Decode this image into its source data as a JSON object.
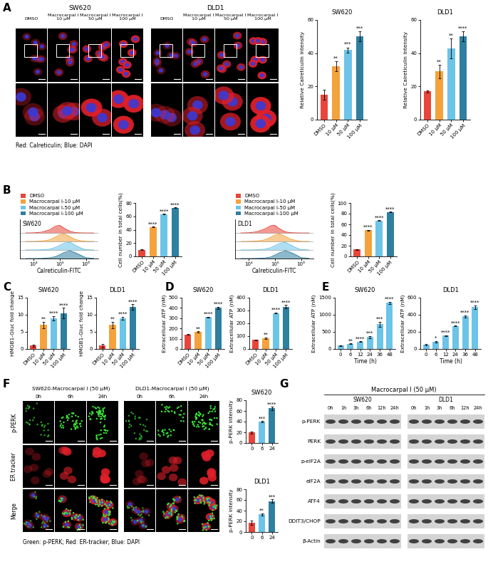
{
  "panel_labels": [
    "A",
    "B",
    "C",
    "D",
    "E",
    "F",
    "G"
  ],
  "chart_data": [
    {
      "type": "bar",
      "title": "SW620",
      "y_label": "Relative Calreticulin intensity",
      "categories": [
        "DMSO",
        "10 μM",
        "50 μM",
        "100 μM"
      ],
      "values": [
        15,
        32,
        42,
        50
      ],
      "errors": [
        3,
        3,
        1.5,
        3
      ],
      "colors": [
        "#e8463b",
        "#f4a23c",
        "#6cc4e8",
        "#2e7fa0"
      ],
      "significance": [
        null,
        "**",
        "***",
        "***"
      ],
      "ylim": [
        0,
        60
      ],
      "yticks": [
        0,
        20,
        40,
        60
      ]
    },
    {
      "type": "bar",
      "title": "DLD1",
      "y_label": "Relative Calreticulin intensity",
      "categories": [
        "DMSO",
        "10 μM",
        "50 μM",
        "100 μM"
      ],
      "values": [
        17,
        29,
        43,
        50
      ],
      "errors": [
        0.5,
        4,
        6,
        3
      ],
      "colors": [
        "#e8463b",
        "#f4a23c",
        "#6cc4e8",
        "#2e7fa0"
      ],
      "significance": [
        null,
        "**",
        "**",
        "****"
      ],
      "ylim": [
        0,
        60
      ],
      "yticks": [
        0,
        20,
        40,
        60
      ]
    },
    {
      "type": "density",
      "title": "SW620",
      "x_label": "Calreticulin-FITC",
      "log": "x",
      "legend": "upper left",
      "tick_labels": "x",
      "x": [
        5000,
        10000,
        20000,
        40000,
        70000,
        100000,
        150000,
        250000,
        400000,
        700000,
        1000000,
        2000000
      ],
      "xlim": [
        3000,
        3000000
      ],
      "xticks": [
        {
          "value": 10000,
          "label": "10⁴"
        },
        {
          "value": 100000,
          "label": "10⁵"
        },
        {
          "value": 1000000,
          "label": "10⁶"
        }
      ],
      "series": [
        {
          "name": "DMSO",
          "color": "#e8463b",
          "values": [
            0,
            0.02,
            0.1,
            0.4,
            0.9,
            1.0,
            0.6,
            0.2,
            0.05,
            0.01,
            0,
            0
          ]
        },
        {
          "name": "Macrocarpal I-10 μM",
          "color": "#f4a23c",
          "values": [
            0,
            0.01,
            0.05,
            0.2,
            0.6,
            0.9,
            1.0,
            0.6,
            0.25,
            0.08,
            0.02,
            0
          ]
        },
        {
          "name": "Macrocarpal I-50 μM",
          "color": "#6cc4e8",
          "values": [
            0,
            0,
            0.03,
            0.1,
            0.35,
            0.6,
            0.9,
            1.0,
            0.6,
            0.2,
            0.05,
            0
          ]
        },
        {
          "name": "Macrocarpal I-100 μM",
          "color": "#2e7fa0",
          "values": [
            0,
            0,
            0.02,
            0.08,
            0.25,
            0.5,
            0.8,
            1.0,
            0.75,
            0.35,
            0.1,
            0.02
          ]
        }
      ]
    },
    {
      "type": "bar",
      "y_label": "Cell number in total cells(%)",
      "categories": [
        "DMSO",
        "10 μM",
        "50 μM",
        "100 μM"
      ],
      "values": [
        10,
        44,
        63,
        73
      ],
      "errors": [
        0.5,
        0.5,
        0.5,
        0.5
      ],
      "colors": [
        "#e8463b",
        "#f4a23c",
        "#6cc4e8",
        "#2e7fa0"
      ],
      "significance": [
        null,
        "****",
        "****",
        "****"
      ],
      "ylim": [
        0,
        80
      ],
      "yticks": [
        0,
        20,
        40,
        60,
        80
      ]
    },
    {
      "type": "density",
      "title": "DLD1",
      "x_label": "Calreticulin-FITC",
      "log": "x",
      "legend": "upper left",
      "tick_labels": "x",
      "x": [
        5000,
        10000,
        20000,
        40000,
        70000,
        100000,
        150000,
        250000,
        400000,
        700000,
        1000000,
        2000000
      ],
      "xlim": [
        3000,
        3000000
      ],
      "xticks": [
        {
          "value": 10000,
          "label": "10⁴"
        },
        {
          "value": 100000,
          "label": "10⁵"
        },
        {
          "value": 1000000,
          "label": "10⁶"
        }
      ],
      "series": [
        {
          "name": "DMSO",
          "color": "#e8463b",
          "values": [
            0,
            0.03,
            0.15,
            0.5,
            0.95,
            1.0,
            0.55,
            0.15,
            0.04,
            0.01,
            0,
            0
          ]
        },
        {
          "name": "Macrocarpal I-10 μM",
          "color": "#f4a23c",
          "values": [
            0,
            0.01,
            0.05,
            0.2,
            0.55,
            0.85,
            1.0,
            0.65,
            0.3,
            0.1,
            0.02,
            0
          ]
        },
        {
          "name": "Macrocarpal I-50 μM",
          "color": "#6cc4e8",
          "values": [
            0,
            0,
            0.03,
            0.1,
            0.3,
            0.55,
            0.85,
            1.0,
            0.65,
            0.25,
            0.06,
            0
          ]
        },
        {
          "name": "Macrocarpal I-100 μM",
          "color": "#2e7fa0",
          "values": [
            0,
            0,
            0.02,
            0.06,
            0.2,
            0.45,
            0.75,
            1.0,
            0.8,
            0.4,
            0.12,
            0.02
          ]
        }
      ]
    },
    {
      "type": "bar",
      "y_label": "Cell number in total cells(%)",
      "categories": [
        "DMSO",
        "10 μM",
        "50 μM",
        "100 μM"
      ],
      "values": [
        13,
        49,
        67,
        83
      ],
      "errors": [
        0.5,
        0.5,
        0.5,
        0.8
      ],
      "colors": [
        "#e8463b",
        "#f4a23c",
        "#6cc4e8",
        "#2e7fa0"
      ],
      "significance": [
        null,
        "****",
        "****",
        "****"
      ],
      "ylim": [
        0,
        100
      ],
      "yticks": [
        0,
        20,
        40,
        60,
        80,
        100
      ]
    },
    {
      "type": "bar",
      "title": "SW620",
      "y_label": "HMGB1-Gluc fold change",
      "categories": [
        "DMSO",
        "10 μM",
        "50 μM",
        "100 μM"
      ],
      "values": [
        1,
        7,
        9,
        10.5
      ],
      "errors": [
        0.3,
        1,
        0.6,
        1.5
      ],
      "colors": [
        "#e8463b",
        "#f4a23c",
        "#6cc4e8",
        "#2e7fa0"
      ],
      "significance": [
        null,
        "**",
        "****",
        "****"
      ],
      "ylim": [
        0,
        15
      ],
      "yticks": [
        0,
        5,
        10,
        15
      ]
    },
    {
      "type": "bar",
      "title": "DLD1",
      "y_label": "HMGB1-Gluc fold change",
      "categories": [
        "DMSO",
        "10 μM",
        "50 μM",
        "100 μM"
      ],
      "values": [
        1,
        7,
        9,
        12.3
      ],
      "errors": [
        0.5,
        1,
        0.4,
        0.8
      ],
      "colors": [
        "#e8463b",
        "#f4a23c",
        "#6cc4e8",
        "#2e7fa0"
      ],
      "significance": [
        null,
        "**",
        "****",
        "****"
      ],
      "ylim": [
        0,
        15
      ],
      "yticks": [
        0,
        5,
        10,
        15
      ]
    },
    {
      "type": "bar",
      "title": "SW620",
      "y_label": "Extracellular ATP (nM)",
      "categories": [
        "DMSO",
        "10 μM",
        "50 μM",
        "100 μM"
      ],
      "values": [
        140,
        165,
        310,
        400
      ],
      "errors": [
        3,
        8,
        5,
        12
      ],
      "colors": [
        "#e8463b",
        "#f4a23c",
        "#6cc4e8",
        "#2e7fa0"
      ],
      "significance": [
        null,
        "**",
        "****",
        "****"
      ],
      "ylim": [
        0,
        500
      ],
      "yticks": [
        0,
        100,
        200,
        300,
        400,
        500
      ]
    },
    {
      "type": "bar",
      "title": "DLD1",
      "y_label": "Extracellular ATP (nM)",
      "categories": [
        "DMSO",
        "10 μM",
        "50 μM",
        "100 μM"
      ],
      "values": [
        70,
        85,
        280,
        330
      ],
      "errors": [
        3,
        6,
        5,
        12
      ],
      "colors": [
        "#e8463b",
        "#f4a23c",
        "#6cc4e8",
        "#2e7fa0"
      ],
      "significance": [
        null,
        "**",
        "****",
        "****"
      ],
      "ylim": [
        0,
        400
      ],
      "yticks": [
        0,
        100,
        200,
        300,
        400
      ]
    },
    {
      "type": "bar",
      "title": "SW620",
      "y_label": "Extracellular ATP (nM)",
      "x_label": "Time (h)",
      "categories": [
        "0",
        "6",
        "12",
        "24",
        "36",
        "48"
      ],
      "values": [
        100,
        150,
        210,
        350,
        720,
        1350
      ],
      "errors": [
        10,
        10,
        10,
        30,
        80,
        30
      ],
      "color": "#6cc4e8",
      "significance": [
        null,
        "**",
        "****",
        "***",
        "***",
        "****"
      ],
      "ylim": [
        0,
        1500
      ],
      "yticks": [
        0,
        500,
        1000,
        1500
      ]
    },
    {
      "type": "bar",
      "title": "DLD1",
      "y_label": "Extracellular ATP (nM)",
      "x_label": "Time (h)",
      "categories": [
        "0",
        "6",
        "12",
        "24",
        "36",
        "48"
      ],
      "values": [
        50,
        85,
        155,
        270,
        380,
        490
      ],
      "errors": [
        10,
        10,
        5,
        5,
        15,
        20
      ],
      "color": "#6cc4e8",
      "significance": [
        null,
        "*",
        "****",
        "****",
        "****",
        "****"
      ],
      "ylim": [
        0,
        600
      ],
      "yticks": [
        0,
        200,
        400,
        600
      ]
    },
    {
      "type": "bar",
      "title": "SW620",
      "y_label": "p-PERK intensity",
      "categories": [
        "0",
        "6",
        "24"
      ],
      "values": [
        20,
        40,
        65
      ],
      "errors": [
        2,
        1,
        3
      ],
      "colors": [
        "#e8463b",
        "#6cc4e8",
        "#2e7fa0"
      ],
      "significance": [
        null,
        "***",
        "****"
      ],
      "ylim": [
        0,
        80
      ],
      "yticks": [
        0,
        20,
        40,
        60,
        80
      ]
    },
    {
      "type": "bar",
      "title": "DLD1",
      "y_label": "p-PERK intensity",
      "categories": [
        "0",
        "6",
        "24"
      ],
      "values": [
        18,
        33,
        58
      ],
      "errors": [
        4,
        2,
        3
      ],
      "colors": [
        "#e8463b",
        "#6cc4e8",
        "#2e7fa0"
      ],
      "significance": [
        null,
        "**",
        "***"
      ],
      "ylim": [
        0,
        80
      ],
      "yticks": [
        0,
        20,
        40,
        60,
        80
      ]
    }
  ],
  "microscopy_A": {
    "caption": "Red: Calreticulin; Blue: DAPI",
    "groups": [
      {
        "title": "SW620",
        "columns": [
          "DMSO",
          "Macrocarpal I\n10 μM",
          "Macrocarpal I\n50 μM",
          "Macrocarpal I\n100 μM"
        ]
      },
      {
        "title": "DLD1",
        "columns": [
          "DMSO",
          "Macrocarpal I\n10 μM",
          "Macrocarpal I\n50 μM",
          "Macrocarpal I\n100 μM"
        ]
      }
    ]
  },
  "microscopy_F": {
    "caption": "Green: p-PERK; Red: ER-tracker; Blue: DAPI",
    "row_labels": [
      "p-PERK",
      "ER tracker",
      "Merge"
    ],
    "groups": [
      {
        "title": "SW620-Macrocarpal I (50 μM)",
        "columns": [
          "0h",
          "6h",
          "24h"
        ]
      },
      {
        "title": "DLD1-Macrocarpal I (50 μM)",
        "columns": [
          "0h",
          "6h",
          "24h"
        ]
      }
    ]
  },
  "western_blot_G": {
    "title": "Macrocarpal I (50 μM)",
    "groups": [
      "SW620",
      "DLD1"
    ],
    "lanes": [
      "0h",
      "1h",
      "3h",
      "6h",
      "12h",
      "24h"
    ],
    "rows": [
      "p-PERK",
      "PERK",
      "p-eIF2A",
      "eIF2A",
      "ATF4",
      "DDIT3/CHOP",
      "β-Actin"
    ]
  }
}
